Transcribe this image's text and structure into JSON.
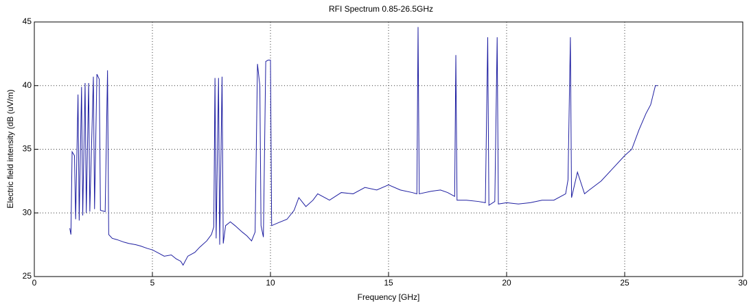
{
  "chart_data": {
    "type": "line",
    "title": "RFI Spectrum 0.85-26.5GHz",
    "x_label": "Frequency [GHz]",
    "y_label": "Electric field intensity (dB (uV/m)",
    "color": "#1c1ca0",
    "grid": true,
    "xlim": [
      0,
      30
    ],
    "xticks": [
      0,
      5,
      10,
      15,
      20,
      25,
      30
    ],
    "ylim": [
      25,
      45
    ],
    "yticks": [
      25,
      30,
      35,
      40,
      45
    ],
    "x": [
      1.5,
      1.55,
      1.6,
      1.7,
      1.75,
      1.85,
      1.9,
      2.0,
      2.05,
      2.15,
      2.2,
      2.3,
      2.35,
      2.5,
      2.55,
      2.65,
      2.75,
      2.8,
      3.0,
      3.1,
      3.15,
      3.3,
      3.5,
      3.8,
      4.0,
      4.3,
      4.5,
      4.8,
      5.0,
      5.3,
      5.5,
      5.8,
      6.0,
      6.2,
      6.3,
      6.5,
      6.8,
      7.0,
      7.3,
      7.5,
      7.6,
      7.65,
      7.7,
      7.8,
      7.85,
      7.95,
      8.0,
      8.1,
      8.3,
      8.5,
      8.8,
      9.0,
      9.2,
      9.35,
      9.45,
      9.55,
      9.6,
      9.7,
      9.8,
      9.9,
      10.0,
      10.05,
      10.3,
      10.7,
      11.0,
      11.2,
      11.5,
      11.8,
      12.0,
      12.5,
      13.0,
      13.5,
      14.0,
      14.5,
      15.0,
      15.5,
      16.0,
      16.2,
      16.25,
      16.3,
      16.8,
      17.2,
      17.5,
      17.8,
      17.85,
      17.9,
      18.3,
      18.8,
      19.1,
      19.2,
      19.25,
      19.5,
      19.6,
      19.65,
      20.0,
      20.5,
      21.0,
      21.5,
      22.0,
      22.5,
      22.6,
      22.7,
      22.75,
      23.0,
      23.3,
      23.5,
      24.0,
      24.5,
      25.0,
      25.3,
      25.6,
      25.9,
      26.1,
      26.3,
      26.4
    ],
    "values": [
      28.8,
      28.3,
      34.8,
      34.5,
      29.5,
      39.3,
      29.4,
      39.9,
      29.8,
      40.2,
      30.0,
      40.2,
      30.1,
      40.7,
      30.3,
      40.9,
      40.5,
      30.2,
      30.1,
      41.2,
      28.3,
      28.0,
      27.9,
      27.7,
      27.6,
      27.5,
      27.4,
      27.2,
      27.1,
      26.8,
      26.6,
      26.7,
      26.4,
      26.2,
      25.9,
      26.6,
      26.9,
      27.3,
      27.8,
      28.3,
      28.9,
      40.6,
      28.0,
      40.6,
      27.5,
      40.7,
      27.6,
      29.0,
      29.3,
      29.0,
      28.5,
      28.2,
      27.8,
      28.5,
      41.7,
      40.0,
      29.0,
      28.1,
      41.9,
      42.0,
      42.0,
      29.0,
      29.2,
      29.5,
      30.2,
      31.2,
      30.5,
      31.0,
      31.5,
      31.0,
      31.6,
      31.5,
      32.0,
      31.8,
      32.2,
      31.8,
      31.6,
      31.5,
      44.6,
      31.5,
      31.7,
      31.8,
      31.6,
      31.3,
      42.4,
      31.0,
      31.0,
      30.9,
      30.8,
      43.8,
      30.6,
      30.9,
      43.8,
      30.7,
      30.8,
      30.7,
      30.8,
      31.0,
      31.0,
      31.5,
      32.6,
      43.8,
      31.2,
      33.2,
      31.5,
      31.8,
      32.5,
      33.5,
      34.5,
      35.0,
      36.5,
      37.8,
      38.5,
      40.0,
      40.0
    ]
  }
}
